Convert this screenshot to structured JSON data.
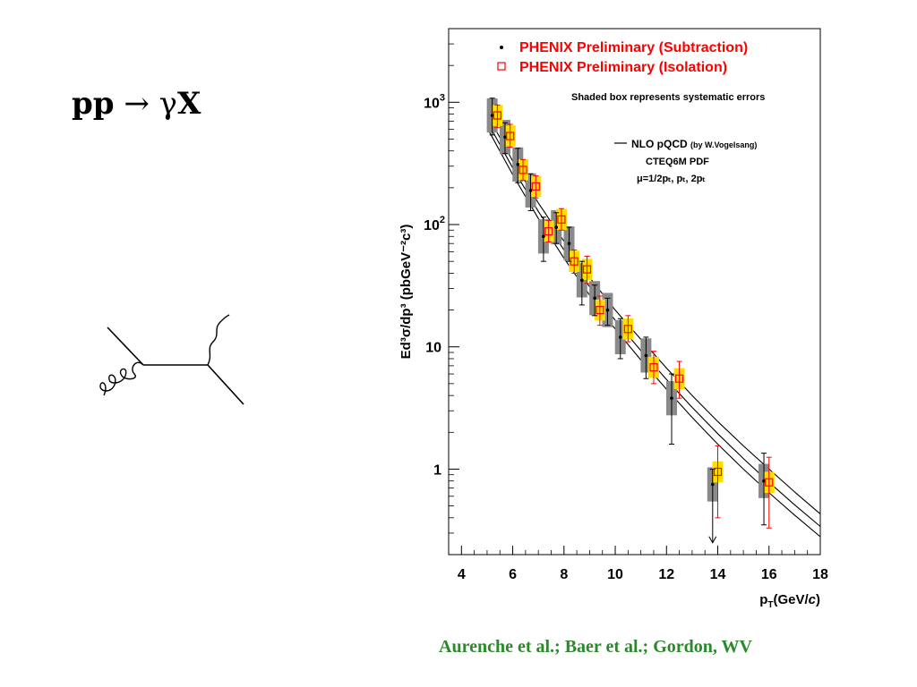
{
  "formula": {
    "lhs": "pp",
    "arrow": "→",
    "gamma": "γ",
    "x": "X"
  },
  "diagram": {
    "type": "feynman",
    "elements": [
      "quark-line",
      "gluon-line",
      "photon-line"
    ]
  },
  "credit": "Aurenche et al.; Baer et al.; Gordon, WV",
  "colors": {
    "subtraction": "#000000",
    "isolation": "#ff0000",
    "isolation_box": "#ffdd00",
    "sys_box": "#8a8a8a",
    "legend_text": "#ff0000",
    "credit": "#2a8a2a"
  },
  "chart_data": {
    "type": "scatter",
    "title": "",
    "xlabel_main": "p",
    "xlabel_sub": "T",
    "xlabel_rest": "(GeV/",
    "xlabel_c": "c",
    "xlabel_end": ")",
    "ylabel": "Ed³σ/dp³ (pbGeV⁻²c³)",
    "xlim": [
      3.5,
      18
    ],
    "ylim": [
      0.2,
      4000
    ],
    "yscale": "log",
    "xticks": [
      4,
      6,
      8,
      10,
      12,
      14,
      16,
      18
    ],
    "yticks": [
      {
        "value": 1,
        "label": "1"
      },
      {
        "value": 10,
        "label": "10"
      },
      {
        "value": 100,
        "label": "10",
        "exp": "2"
      },
      {
        "value": 1000,
        "label": "10",
        "exp": "3"
      }
    ],
    "legend": {
      "position": "top-right",
      "subtraction": "PHENIX Preliminary (Subtraction)",
      "isolation": "PHENIX Preliminary (Isolation)",
      "note": "Shaded box represents systematic errors"
    },
    "theory_label": {
      "line1": "NLO pQCD",
      "line1_small": "(by W.Vogelsang)",
      "line2": "CTEQ6M PDF",
      "line3": "μ=1/2pₜ, pₜ, 2pₜ"
    },
    "series": [
      {
        "name": "PHENIX Preliminary (Subtraction)",
        "marker": "dot",
        "points": [
          {
            "x": 5.2,
            "y": 780,
            "lo": 540,
            "hi": 1080
          },
          {
            "x": 5.7,
            "y": 520,
            "lo": 380,
            "hi": 680
          },
          {
            "x": 6.2,
            "y": 310,
            "lo": 220,
            "hi": 420
          },
          {
            "x": 6.7,
            "y": 190,
            "lo": 130,
            "hi": 260
          },
          {
            "x": 7.2,
            "y": 80,
            "lo": 50,
            "hi": 115
          },
          {
            "x": 7.7,
            "y": 95,
            "lo": 70,
            "hi": 125
          },
          {
            "x": 8.2,
            "y": 70,
            "lo": 50,
            "hi": 95
          },
          {
            "x": 8.7,
            "y": 35,
            "lo": 22,
            "hi": 50
          },
          {
            "x": 9.2,
            "y": 25,
            "lo": 18,
            "hi": 32
          },
          {
            "x": 9.7,
            "y": 20,
            "lo": 15,
            "hi": 25
          },
          {
            "x": 10.2,
            "y": 12,
            "lo": 8,
            "hi": 17
          },
          {
            "x": 11.2,
            "y": 8.5,
            "lo": 5.5,
            "hi": 12
          },
          {
            "x": 12.2,
            "y": 3.8,
            "lo": 1.6,
            "hi": 6
          },
          {
            "x": 13.8,
            "y": 0.75,
            "lo": 0.25,
            "hi": 1.0,
            "limit": true
          },
          {
            "x": 15.8,
            "y": 0.8,
            "lo": 0.35,
            "hi": 1.35
          }
        ]
      },
      {
        "name": "PHENIX Preliminary (Isolation)",
        "marker": "open-square",
        "points": [
          {
            "x": 5.4,
            "y": 780,
            "lo": 620,
            "hi": 950
          },
          {
            "x": 5.9,
            "y": 530,
            "lo": 430,
            "hi": 660
          },
          {
            "x": 6.4,
            "y": 280,
            "lo": 230,
            "hi": 340
          },
          {
            "x": 6.9,
            "y": 205,
            "lo": 165,
            "hi": 250
          },
          {
            "x": 7.4,
            "y": 88,
            "lo": 72,
            "hi": 108
          },
          {
            "x": 7.9,
            "y": 110,
            "lo": 90,
            "hi": 135
          },
          {
            "x": 8.4,
            "y": 50,
            "lo": 40,
            "hi": 62
          },
          {
            "x": 8.9,
            "y": 43,
            "lo": 33,
            "hi": 55
          },
          {
            "x": 9.4,
            "y": 20,
            "lo": 15,
            "hi": 26
          },
          {
            "x": 10.5,
            "y": 14,
            "lo": 11,
            "hi": 18
          },
          {
            "x": 11.5,
            "y": 6.8,
            "lo": 5,
            "hi": 9.2
          },
          {
            "x": 12.5,
            "y": 5.5,
            "lo": 3.8,
            "hi": 7.6
          },
          {
            "x": 14.0,
            "y": 0.95,
            "lo": 0.4,
            "hi": 1.55
          },
          {
            "x": 16.0,
            "y": 0.78,
            "lo": 0.33,
            "hi": 1.25
          }
        ]
      }
    ],
    "theory_curves": [
      {
        "name": "mu=1/2pT",
        "x": [
          5,
          6,
          7,
          8,
          9,
          10,
          11,
          12,
          13,
          14,
          15,
          16,
          17,
          18
        ],
        "y": [
          800,
          330,
          150,
          73,
          37,
          20,
          11.5,
          6.7,
          4.0,
          2.45,
          1.55,
          1.0,
          0.65,
          0.43
        ]
      },
      {
        "name": "mu=pT",
        "x": [
          5,
          6,
          7,
          8,
          9,
          10,
          11,
          12,
          13,
          14,
          15,
          16,
          17,
          18
        ],
        "y": [
          700,
          290,
          128,
          62,
          31,
          16.5,
          9.3,
          5.4,
          3.2,
          1.95,
          1.22,
          0.78,
          0.51,
          0.34
        ]
      },
      {
        "name": "mu=2pT",
        "x": [
          5,
          6,
          7,
          8,
          9,
          10,
          11,
          12,
          13,
          14,
          15,
          16,
          17,
          18
        ],
        "y": [
          620,
          255,
          112,
          53,
          26.5,
          14,
          7.8,
          4.5,
          2.65,
          1.6,
          1.0,
          0.64,
          0.42,
          0.28
        ]
      }
    ]
  }
}
